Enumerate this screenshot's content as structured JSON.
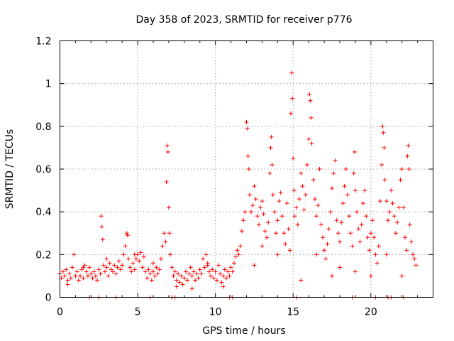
{
  "chart_data": {
    "type": "scatter",
    "title": "Day 358 of 2023, SRMTID for receiver p776",
    "xlabel": "GPS time / hours",
    "ylabel": "SRMTID / TECUs",
    "xlim": [
      0,
      24
    ],
    "ylim": [
      0,
      1.2
    ],
    "x_ticks": [
      0,
      5,
      10,
      15,
      20
    ],
    "x_tick_labels": [
      "0",
      "5",
      "10",
      "15",
      "20"
    ],
    "y_ticks": [
      0,
      0.2,
      0.4,
      0.6,
      0.8,
      1.0,
      1.2
    ],
    "y_tick_labels": [
      "0",
      "0.2",
      "0.4",
      "0.6",
      "0.8",
      "1",
      "1.2"
    ],
    "grid": true,
    "marker": "+",
    "color": "#ff0000",
    "series": [
      {
        "name": "SRMTID",
        "points": [
          [
            0.0,
            0.11
          ],
          [
            0.1,
            0.09
          ],
          [
            0.2,
            0.12
          ],
          [
            0.3,
            0.1
          ],
          [
            0.4,
            0.13
          ],
          [
            0.5,
            0.08
          ],
          [
            0.6,
            0.11
          ],
          [
            0.7,
            0.09
          ],
          [
            0.8,
            0.14
          ],
          [
            0.9,
            0.2
          ],
          [
            1.0,
            0.1
          ],
          [
            1.1,
            0.12
          ],
          [
            1.2,
            0.08
          ],
          [
            1.3,
            0.1
          ],
          [
            1.4,
            0.13
          ],
          [
            1.5,
            0.09
          ],
          [
            1.6,
            0.15
          ],
          [
            1.7,
            0.12
          ],
          [
            1.8,
            0.1
          ],
          [
            1.9,
            0.14
          ],
          [
            2.0,
            0.11
          ],
          [
            2.1,
            0.09
          ],
          [
            2.2,
            0.12
          ],
          [
            2.3,
            0.1
          ],
          [
            2.4,
            0.08
          ],
          [
            2.5,
            0.13
          ],
          [
            2.6,
            0.11
          ],
          [
            2.65,
            0.38
          ],
          [
            2.7,
            0.33
          ],
          [
            2.75,
            0.27
          ],
          [
            2.8,
            0.15
          ],
          [
            2.9,
            0.12
          ],
          [
            3.0,
            0.14
          ],
          [
            3.1,
            0.1
          ],
          [
            3.2,
            0.16
          ],
          [
            3.3,
            0.13
          ],
          [
            3.4,
            0.12
          ],
          [
            3.5,
            0.15
          ],
          [
            3.6,
            0.11
          ],
          [
            3.7,
            0.14
          ],
          [
            3.8,
            0.17
          ],
          [
            3.9,
            0.13
          ],
          [
            4.0,
            0.15
          ],
          [
            4.1,
            0.2
          ],
          [
            4.2,
            0.24
          ],
          [
            4.3,
            0.3
          ],
          [
            4.35,
            0.29
          ],
          [
            4.4,
            0.18
          ],
          [
            4.5,
            0.14
          ],
          [
            4.6,
            0.12
          ],
          [
            4.7,
            0.16
          ],
          [
            4.8,
            0.13
          ],
          [
            4.9,
            0.18
          ],
          [
            5.0,
            0.2
          ],
          [
            5.1,
            0.17
          ],
          [
            5.2,
            0.21
          ],
          [
            5.3,
            0.14
          ],
          [
            5.4,
            0.19
          ],
          [
            5.5,
            0.12
          ],
          [
            5.6,
            0.09
          ],
          [
            5.7,
            0.13
          ],
          [
            5.8,
            0.11
          ],
          [
            5.9,
            0.08
          ],
          [
            6.0,
            0.12
          ],
          [
            6.1,
            0.1
          ],
          [
            6.2,
            0.14
          ],
          [
            6.3,
            0.11
          ],
          [
            6.4,
            0.13
          ],
          [
            6.5,
            0.18
          ],
          [
            6.6,
            0.24
          ],
          [
            6.7,
            0.3
          ],
          [
            6.8,
            0.26
          ],
          [
            6.85,
            0.54
          ],
          [
            6.9,
            0.71
          ],
          [
            6.95,
            0.68
          ],
          [
            7.0,
            0.42
          ],
          [
            7.05,
            0.3
          ],
          [
            7.1,
            0.2
          ],
          [
            7.2,
            0.14
          ],
          [
            7.3,
            0.1
          ],
          [
            7.4,
            0.12
          ],
          [
            7.5,
            0.08
          ],
          [
            7.6,
            0.11
          ],
          [
            7.7,
            0.07
          ],
          [
            7.8,
            0.1
          ],
          [
            7.9,
            0.06
          ],
          [
            8.0,
            0.09
          ],
          [
            8.1,
            0.12
          ],
          [
            8.2,
            0.08
          ],
          [
            8.3,
            0.11
          ],
          [
            8.4,
            0.14
          ],
          [
            8.5,
            0.1
          ],
          [
            8.6,
            0.12
          ],
          [
            8.7,
            0.08
          ],
          [
            8.8,
            0.11
          ],
          [
            8.9,
            0.09
          ],
          [
            9.0,
            0.13
          ],
          [
            9.1,
            0.11
          ],
          [
            9.2,
            0.18
          ],
          [
            9.3,
            0.14
          ],
          [
            9.4,
            0.2
          ],
          [
            9.5,
            0.16
          ],
          [
            9.6,
            0.12
          ],
          [
            9.7,
            0.1
          ],
          [
            9.8,
            0.13
          ],
          [
            9.9,
            0.09
          ],
          [
            10.0,
            0.12
          ],
          [
            10.1,
            0.08
          ],
          [
            10.2,
            0.15
          ],
          [
            10.3,
            0.11
          ],
          [
            10.4,
            0.07
          ],
          [
            10.5,
            0.1
          ],
          [
            10.6,
            0.13
          ],
          [
            10.7,
            0.09
          ],
          [
            10.8,
            0.12
          ],
          [
            10.9,
            0.1
          ],
          [
            11.0,
            0.14
          ],
          [
            11.1,
            0.12
          ],
          [
            11.2,
            0.16
          ],
          [
            11.3,
            0.19
          ],
          [
            11.4,
            0.22
          ],
          [
            11.5,
            0.2
          ],
          [
            11.6,
            0.24
          ],
          [
            11.7,
            0.31
          ],
          [
            11.8,
            0.36
          ],
          [
            11.9,
            0.4
          ],
          [
            12.0,
            0.82
          ],
          [
            12.05,
            0.79
          ],
          [
            12.1,
            0.66
          ],
          [
            12.15,
            0.6
          ],
          [
            12.2,
            0.48
          ],
          [
            12.3,
            0.4
          ],
          [
            12.4,
            0.43
          ],
          [
            12.5,
            0.52
          ],
          [
            12.6,
            0.46
          ],
          [
            12.7,
            0.38
          ],
          [
            12.8,
            0.34
          ],
          [
            12.9,
            0.42
          ],
          [
            13.0,
            0.45
          ],
          [
            13.1,
            0.39
          ],
          [
            13.2,
            0.31
          ],
          [
            13.3,
            0.28
          ],
          [
            13.4,
            0.35
          ],
          [
            13.5,
            0.58
          ],
          [
            13.55,
            0.7
          ],
          [
            13.6,
            0.75
          ],
          [
            13.65,
            0.62
          ],
          [
            13.7,
            0.48
          ],
          [
            13.8,
            0.4
          ],
          [
            13.9,
            0.3
          ],
          [
            14.0,
            0.36
          ],
          [
            14.1,
            0.45
          ],
          [
            14.2,
            0.49
          ],
          [
            14.3,
            0.38
          ],
          [
            14.4,
            0.3
          ],
          [
            14.5,
            0.25
          ],
          [
            14.6,
            0.44
          ],
          [
            14.7,
            0.32
          ],
          [
            14.8,
            0.22
          ],
          [
            14.85,
            0.86
          ],
          [
            14.9,
            1.05
          ],
          [
            14.95,
            0.93
          ],
          [
            15.0,
            0.65
          ],
          [
            15.05,
            0.5
          ],
          [
            15.1,
            0.38
          ],
          [
            15.2,
            0.42
          ],
          [
            15.3,
            0.34
          ],
          [
            15.4,
            0.46
          ],
          [
            15.5,
            0.58
          ],
          [
            15.6,
            0.52
          ],
          [
            15.7,
            0.41
          ],
          [
            15.8,
            0.48
          ],
          [
            15.9,
            0.62
          ],
          [
            16.0,
            0.74
          ],
          [
            16.05,
            0.95
          ],
          [
            16.1,
            0.92
          ],
          [
            16.15,
            0.84
          ],
          [
            16.2,
            0.72
          ],
          [
            16.3,
            0.55
          ],
          [
            16.4,
            0.46
          ],
          [
            16.5,
            0.38
          ],
          [
            16.6,
            0.43
          ],
          [
            16.7,
            0.6
          ],
          [
            16.8,
            0.34
          ],
          [
            16.9,
            0.28
          ],
          [
            17.0,
            0.22
          ],
          [
            17.1,
            0.18
          ],
          [
            17.2,
            0.25
          ],
          [
            17.3,
            0.32
          ],
          [
            17.4,
            0.4
          ],
          [
            17.5,
            0.51
          ],
          [
            17.6,
            0.58
          ],
          [
            17.7,
            0.64
          ],
          [
            17.8,
            0.36
          ],
          [
            17.9,
            0.3
          ],
          [
            18.0,
            0.26
          ],
          [
            18.1,
            0.35
          ],
          [
            18.2,
            0.44
          ],
          [
            18.3,
            0.52
          ],
          [
            18.4,
            0.6
          ],
          [
            18.5,
            0.48
          ],
          [
            18.6,
            0.38
          ],
          [
            18.7,
            0.3
          ],
          [
            18.8,
            0.24
          ],
          [
            18.9,
            0.58
          ],
          [
            18.95,
            0.68
          ],
          [
            19.0,
            0.5
          ],
          [
            19.1,
            0.4
          ],
          [
            19.2,
            0.32
          ],
          [
            19.3,
            0.26
          ],
          [
            19.4,
            0.34
          ],
          [
            19.5,
            0.44
          ],
          [
            19.6,
            0.5
          ],
          [
            19.7,
            0.38
          ],
          [
            19.8,
            0.28
          ],
          [
            19.9,
            0.22
          ],
          [
            20.0,
            0.3
          ],
          [
            20.1,
            0.36
          ],
          [
            20.2,
            0.28
          ],
          [
            20.3,
            0.2
          ],
          [
            20.4,
            0.16
          ],
          [
            20.5,
            0.24
          ],
          [
            20.6,
            0.45
          ],
          [
            20.7,
            0.62
          ],
          [
            20.75,
            0.8
          ],
          [
            20.8,
            0.77
          ],
          [
            20.85,
            0.7
          ],
          [
            20.9,
            0.55
          ],
          [
            21.0,
            0.45
          ],
          [
            21.1,
            0.36
          ],
          [
            21.2,
            0.4
          ],
          [
            21.3,
            0.5
          ],
          [
            21.4,
            0.44
          ],
          [
            21.5,
            0.38
          ],
          [
            21.6,
            0.3
          ],
          [
            21.7,
            0.35
          ],
          [
            21.8,
            0.42
          ],
          [
            21.9,
            0.55
          ],
          [
            22.0,
            0.6
          ],
          [
            22.1,
            0.42
          ],
          [
            22.2,
            0.28
          ],
          [
            22.3,
            0.22
          ],
          [
            22.35,
            0.66
          ],
          [
            22.4,
            0.71
          ],
          [
            22.45,
            0.6
          ],
          [
            22.5,
            0.34
          ],
          [
            22.6,
            0.26
          ],
          [
            22.7,
            0.2
          ],
          [
            22.8,
            0.18
          ],
          [
            22.9,
            0.15
          ],
          [
            0.5,
            0.06
          ],
          [
            1.5,
            0.14
          ],
          [
            3.0,
            0.18
          ],
          [
            4.8,
            0.2
          ],
          [
            6.0,
            0.16
          ],
          [
            7.5,
            0.05
          ],
          [
            8.5,
            0.04
          ],
          [
            9.5,
            0.15
          ],
          [
            10.5,
            0.05
          ],
          [
            12.5,
            0.15
          ],
          [
            13.0,
            0.24
          ],
          [
            14.0,
            0.2
          ],
          [
            15.5,
            0.08
          ],
          [
            16.5,
            0.2
          ],
          [
            17.5,
            0.1
          ],
          [
            18.0,
            0.14
          ],
          [
            19.0,
            0.12
          ],
          [
            20.0,
            0.1
          ],
          [
            21.0,
            0.2
          ],
          [
            22.0,
            0.1
          ],
          [
            1.9,
            0.0
          ],
          [
            2.5,
            0.0
          ],
          [
            3.6,
            0.0
          ],
          [
            5.8,
            0.0
          ],
          [
            7.2,
            0.0
          ],
          [
            7.4,
            0.0
          ],
          [
            10.9,
            0.0
          ],
          [
            11.1,
            0.0
          ],
          [
            15.2,
            0.0
          ],
          [
            18.8,
            0.0
          ],
          [
            20.3,
            0.0
          ],
          [
            21.1,
            0.0
          ],
          [
            21.3,
            0.0
          ],
          [
            22.1,
            0.0
          ]
        ]
      }
    ]
  }
}
